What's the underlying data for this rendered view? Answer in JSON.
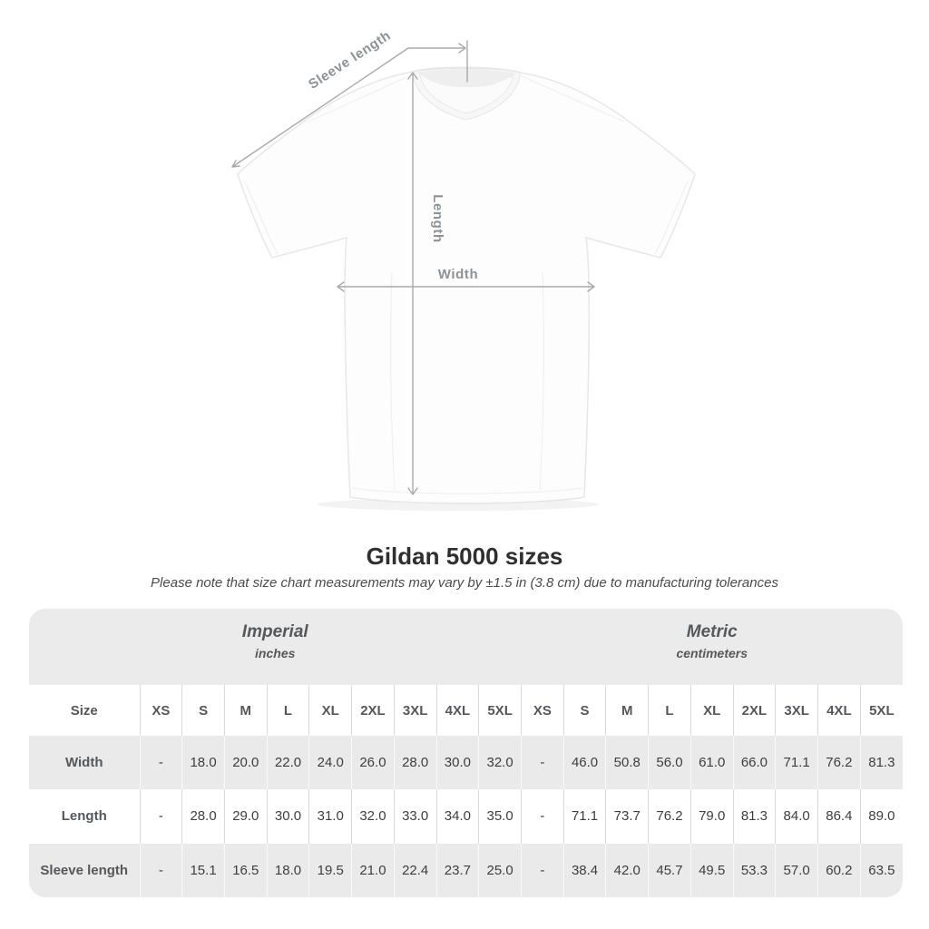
{
  "title": "Gildan 5000 sizes",
  "subtitle": "Please note that size chart measurements may vary by ±1.5 in (3.8 cm) due to manufacturing tolerances",
  "diagram": {
    "sleeve_length_label": "Sleeve length",
    "length_label": "Length",
    "width_label": "Width"
  },
  "colors": {
    "table_band_gray": "#ebebeb",
    "row_stripe_gray": "#eaeaea",
    "annotation_gray": "#a6abaf",
    "title_text": "#2f2f2f"
  },
  "table": {
    "corner_label": "Size",
    "unit_groups": [
      {
        "name": "Imperial",
        "sub": "inches"
      },
      {
        "name": "Metric",
        "sub": "centimeters"
      }
    ],
    "size_headers": [
      "XS",
      "S",
      "M",
      "L",
      "XL",
      "2XL",
      "3XL",
      "4XL",
      "5XL",
      "XS",
      "S",
      "M",
      "L",
      "XL",
      "2XL",
      "3XL",
      "4XL",
      "5XL"
    ],
    "rows": [
      {
        "label": "Width",
        "values": [
          "-",
          "18.0",
          "20.0",
          "22.0",
          "24.0",
          "26.0",
          "28.0",
          "30.0",
          "32.0",
          "-",
          "46.0",
          "50.8",
          "56.0",
          "61.0",
          "66.0",
          "71.1",
          "76.2",
          "81.3"
        ]
      },
      {
        "label": "Length",
        "values": [
          "-",
          "28.0",
          "29.0",
          "30.0",
          "31.0",
          "32.0",
          "33.0",
          "34.0",
          "35.0",
          "-",
          "71.1",
          "73.7",
          "76.2",
          "79.0",
          "81.3",
          "84.0",
          "86.4",
          "89.0"
        ]
      },
      {
        "label": "Sleeve length",
        "values": [
          "-",
          "15.1",
          "16.5",
          "18.0",
          "19.5",
          "21.0",
          "22.4",
          "23.7",
          "25.0",
          "-",
          "38.4",
          "42.0",
          "45.7",
          "49.5",
          "53.3",
          "57.0",
          "60.2",
          "63.5"
        ]
      }
    ]
  },
  "chart_data": {
    "type": "table",
    "title": "Gildan 5000 sizes",
    "note": "Size chart measurements may vary by ±1.5 in (3.8 cm) due to manufacturing tolerances",
    "sizes": [
      "XS",
      "S",
      "M",
      "L",
      "XL",
      "2XL",
      "3XL",
      "4XL",
      "5XL"
    ],
    "measurements": [
      {
        "name": "Width",
        "imperial_inches": [
          null,
          18.0,
          20.0,
          22.0,
          24.0,
          26.0,
          28.0,
          30.0,
          32.0
        ],
        "metric_centimeters": [
          null,
          46.0,
          50.8,
          56.0,
          61.0,
          66.0,
          71.1,
          76.2,
          81.3
        ]
      },
      {
        "name": "Length",
        "imperial_inches": [
          null,
          28.0,
          29.0,
          30.0,
          31.0,
          32.0,
          33.0,
          34.0,
          35.0
        ],
        "metric_centimeters": [
          null,
          71.1,
          73.7,
          76.2,
          79.0,
          81.3,
          84.0,
          86.4,
          89.0
        ]
      },
      {
        "name": "Sleeve length",
        "imperial_inches": [
          null,
          15.1,
          16.5,
          18.0,
          19.5,
          21.0,
          22.4,
          23.7,
          25.0
        ],
        "metric_centimeters": [
          null,
          38.4,
          42.0,
          45.7,
          49.5,
          53.3,
          57.0,
          60.2,
          63.5
        ]
      }
    ]
  }
}
